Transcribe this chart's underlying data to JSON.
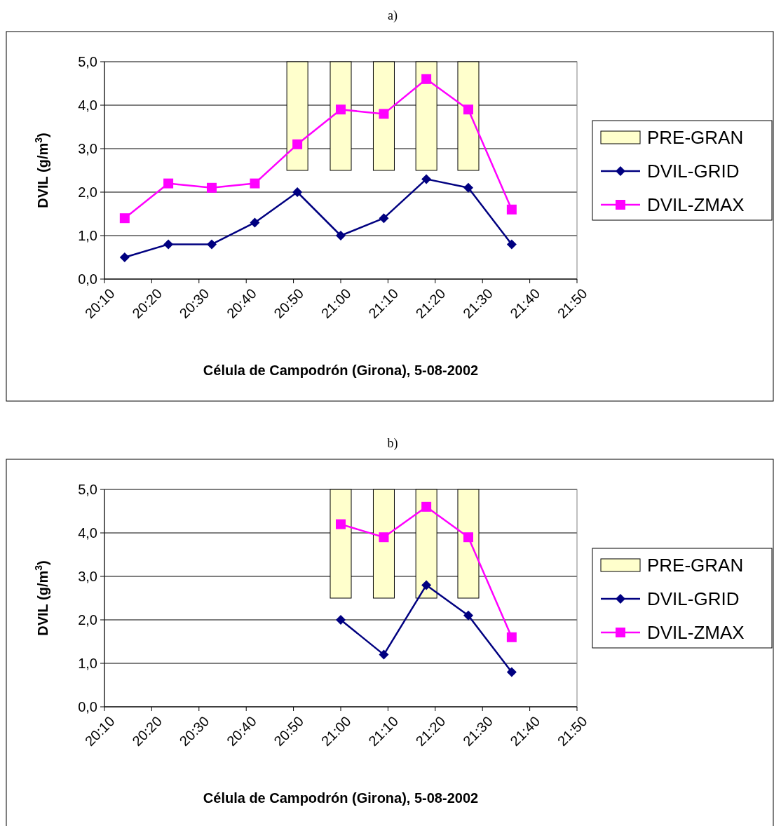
{
  "chart_data": [
    {
      "type": "line",
      "title": "a)",
      "xlabel": "Célula de Campodrón (Girona), 5-08-2002",
      "ylabel": "DVIL (g/m$^{3}$)",
      "xlim": [
        20.1667,
        21.8333
      ],
      "xticks": [
        {
          "value": 20.1667,
          "label": "20:10"
        },
        {
          "value": 20.3333,
          "label": "20:20"
        },
        {
          "value": 20.5,
          "label": "20:30"
        },
        {
          "value": 20.6667,
          "label": "20:40"
        },
        {
          "value": 20.8333,
          "label": "20:50"
        },
        {
          "value": 21,
          "label": "21:00"
        },
        {
          "value": 21.1667,
          "label": "21:10"
        },
        {
          "value": 21.3333,
          "label": "21:20"
        },
        {
          "value": 21.5,
          "label": "21:30"
        },
        {
          "value": 21.6667,
          "label": "21:40"
        },
        {
          "value": 21.8333,
          "label": "21:50"
        }
      ],
      "ylim": [
        0,
        5
      ],
      "yticks": [
        {
          "value": 0,
          "label": "0,0"
        },
        {
          "value": 1,
          "label": "1,0"
        },
        {
          "value": 2,
          "label": "2,0"
        },
        {
          "value": 3,
          "label": "3,0"
        },
        {
          "value": 4,
          "label": "4,0"
        },
        {
          "value": 5,
          "label": "5,0"
        }
      ],
      "grid": "y",
      "legend": "right",
      "x": [
        20.238,
        20.392,
        20.545,
        20.697,
        20.847,
        21.0,
        21.152,
        21.302,
        21.45,
        21.603
      ],
      "series": [
        {
          "name": "PRE-GRAN",
          "type": "bar",
          "color": "#ffffcc",
          "x": [
            20.847,
            21.0,
            21.152,
            21.302,
            21.45
          ],
          "base": [
            2.5,
            2.5,
            2.5,
            2.5,
            2.5
          ],
          "values": [
            2.5,
            2.5,
            2.5,
            2.5,
            2.5
          ]
        },
        {
          "name": "DVIL-GRID",
          "color": "#000080",
          "marker": "diamond",
          "values": [
            0.5,
            0.8,
            0.8,
            1.3,
            2.0,
            1.0,
            1.4,
            2.3,
            2.1,
            0.8
          ]
        },
        {
          "name": "DVIL-ZMAX",
          "color": "#ff00ff",
          "marker": "square",
          "values": [
            1.4,
            2.2,
            2.1,
            2.2,
            3.1,
            3.9,
            3.8,
            4.6,
            3.9,
            1.6
          ]
        }
      ]
    },
    {
      "type": "line",
      "title": "b)",
      "xlabel": "Célula de Campodrón (Girona), 5-08-2002",
      "ylabel": "DVIL (g/m$^{3}$)",
      "xlim": [
        20.1667,
        21.8333
      ],
      "xticks": [
        {
          "value": 20.1667,
          "label": "20:10"
        },
        {
          "value": 20.3333,
          "label": "20:20"
        },
        {
          "value": 20.5,
          "label": "20:30"
        },
        {
          "value": 20.6667,
          "label": "20:40"
        },
        {
          "value": 20.8333,
          "label": "20:50"
        },
        {
          "value": 21,
          "label": "21:00"
        },
        {
          "value": 21.1667,
          "label": "21:10"
        },
        {
          "value": 21.3333,
          "label": "21:20"
        },
        {
          "value": 21.5,
          "label": "21:30"
        },
        {
          "value": 21.6667,
          "label": "21:40"
        },
        {
          "value": 21.8333,
          "label": "21:50"
        }
      ],
      "ylim": [
        0,
        5
      ],
      "yticks": [
        {
          "value": 0,
          "label": "0,0"
        },
        {
          "value": 1,
          "label": "1,0"
        },
        {
          "value": 2,
          "label": "2,0"
        },
        {
          "value": 3,
          "label": "3,0"
        },
        {
          "value": 4,
          "label": "4,0"
        },
        {
          "value": 5,
          "label": "5,0"
        }
      ],
      "grid": "y",
      "legend": "right",
      "x": [
        21.0,
        21.152,
        21.302,
        21.45,
        21.603
      ],
      "series": [
        {
          "name": "PRE-GRAN",
          "type": "bar",
          "color": "#ffffcc",
          "x": [
            21.0,
            21.152,
            21.302,
            21.45
          ],
          "base": [
            2.5,
            2.5,
            2.5,
            2.5
          ],
          "values": [
            2.5,
            2.5,
            2.5,
            2.5
          ]
        },
        {
          "name": "DVIL-GRID",
          "color": "#000080",
          "marker": "diamond",
          "values": [
            2.0,
            1.2,
            2.8,
            2.1,
            0.8
          ]
        },
        {
          "name": "DVIL-ZMAX",
          "color": "#ff00ff",
          "marker": "square",
          "values": [
            4.2,
            3.9,
            4.6,
            3.9,
            1.6
          ]
        }
      ]
    }
  ]
}
